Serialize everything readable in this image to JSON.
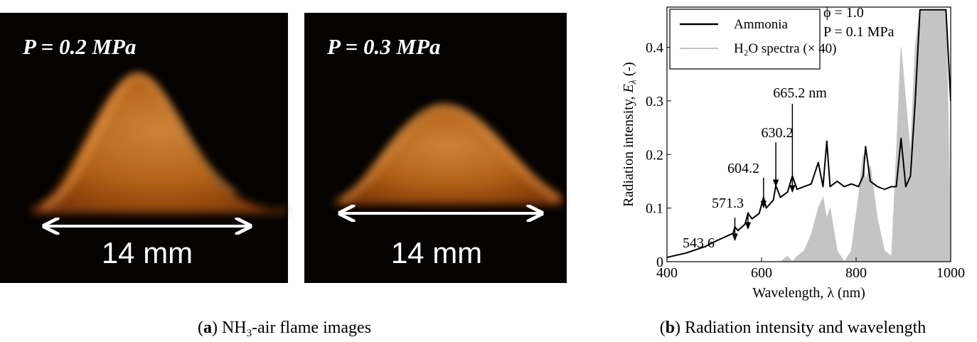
{
  "figure_a": {
    "panels": [
      {
        "pressure": "P = 0.2 MPa",
        "scale": "14 mm"
      },
      {
        "pressure": "P = 0.3 MPa",
        "scale": "14 mm"
      }
    ],
    "caption": {
      "open": "(",
      "label": "a",
      "close": ")",
      "text": [
        "NH",
        "3",
        "-air flame images"
      ]
    }
  },
  "chart_data": {
    "type": "line",
    "x_label": "Wavelength, λ (nm)",
    "y_label": [
      "Radiation intensity,",
      "E",
      "λ",
      "(-)"
    ],
    "x": [
      400,
      420,
      440,
      460,
      480,
      500,
      520,
      540,
      543.6,
      550,
      565,
      571.3,
      580,
      595,
      604.2,
      610,
      625,
      630.2,
      640,
      655,
      665.2,
      675,
      690,
      705,
      720,
      730,
      738,
      745,
      760,
      775,
      790,
      805,
      815,
      820,
      830,
      845,
      860,
      875,
      885,
      895,
      905,
      915,
      925,
      935,
      950,
      970,
      990,
      1000
    ],
    "series": [
      {
        "name": "H₂O spectra (× 40)",
        "color": "#c4c4c4",
        "fill": true,
        "values": [
          0,
          0,
          0,
          0,
          0,
          0,
          0,
          0,
          0,
          0,
          0,
          0,
          0,
          0,
          0,
          0,
          0,
          0,
          0,
          0.01,
          0,
          0.01,
          0.02,
          0.05,
          0.1,
          0.12,
          0.08,
          0.1,
          0.02,
          0,
          0.02,
          0.12,
          0.2,
          0.15,
          0.18,
          0.08,
          0.02,
          0.01,
          0.2,
          0.4,
          0.3,
          0.2,
          0.4,
          0.47,
          0.47,
          0.47,
          0.47,
          0.05
        ]
      },
      {
        "name": "Ammonia",
        "color": "#000000",
        "fill": false,
        "values": [
          0.008,
          0.012,
          0.016,
          0.022,
          0.028,
          0.037,
          0.045,
          0.053,
          0.065,
          0.058,
          0.07,
          0.09,
          0.08,
          0.09,
          0.12,
          0.1,
          0.115,
          0.142,
          0.12,
          0.13,
          0.16,
          0.135,
          0.14,
          0.145,
          0.185,
          0.14,
          0.225,
          0.14,
          0.15,
          0.14,
          0.145,
          0.14,
          0.16,
          0.215,
          0.15,
          0.14,
          0.135,
          0.14,
          0.14,
          0.23,
          0.14,
          0.16,
          0.3,
          0.47,
          0.47,
          0.47,
          0.47,
          0.3
        ]
      }
    ],
    "legend_order": [
      1,
      0
    ],
    "legend": "upper left",
    "xlim": [
      400,
      1000
    ],
    "xticks": [
      400,
      600,
      800,
      1000
    ],
    "ylim": [
      0,
      0.475
    ],
    "yticks": [
      0,
      0.1,
      0.2,
      0.3,
      0.4
    ],
    "annotations": [
      {
        "text": "665.2 nm",
        "x": 665.2
      },
      {
        "text": "630.2",
        "x": 630.2
      },
      {
        "text": "604.2",
        "x": 604.2
      },
      {
        "text": "571.3",
        "x": 571.3
      },
      {
        "text": "543.6",
        "x": 543.6
      }
    ],
    "conditions": [
      "ϕ = 1.0",
      "P = 0.1 MPa"
    ]
  },
  "caption_b": {
    "open": "(",
    "label": "b",
    "close": ")",
    "text": "Radiation intensity and wavelength"
  }
}
